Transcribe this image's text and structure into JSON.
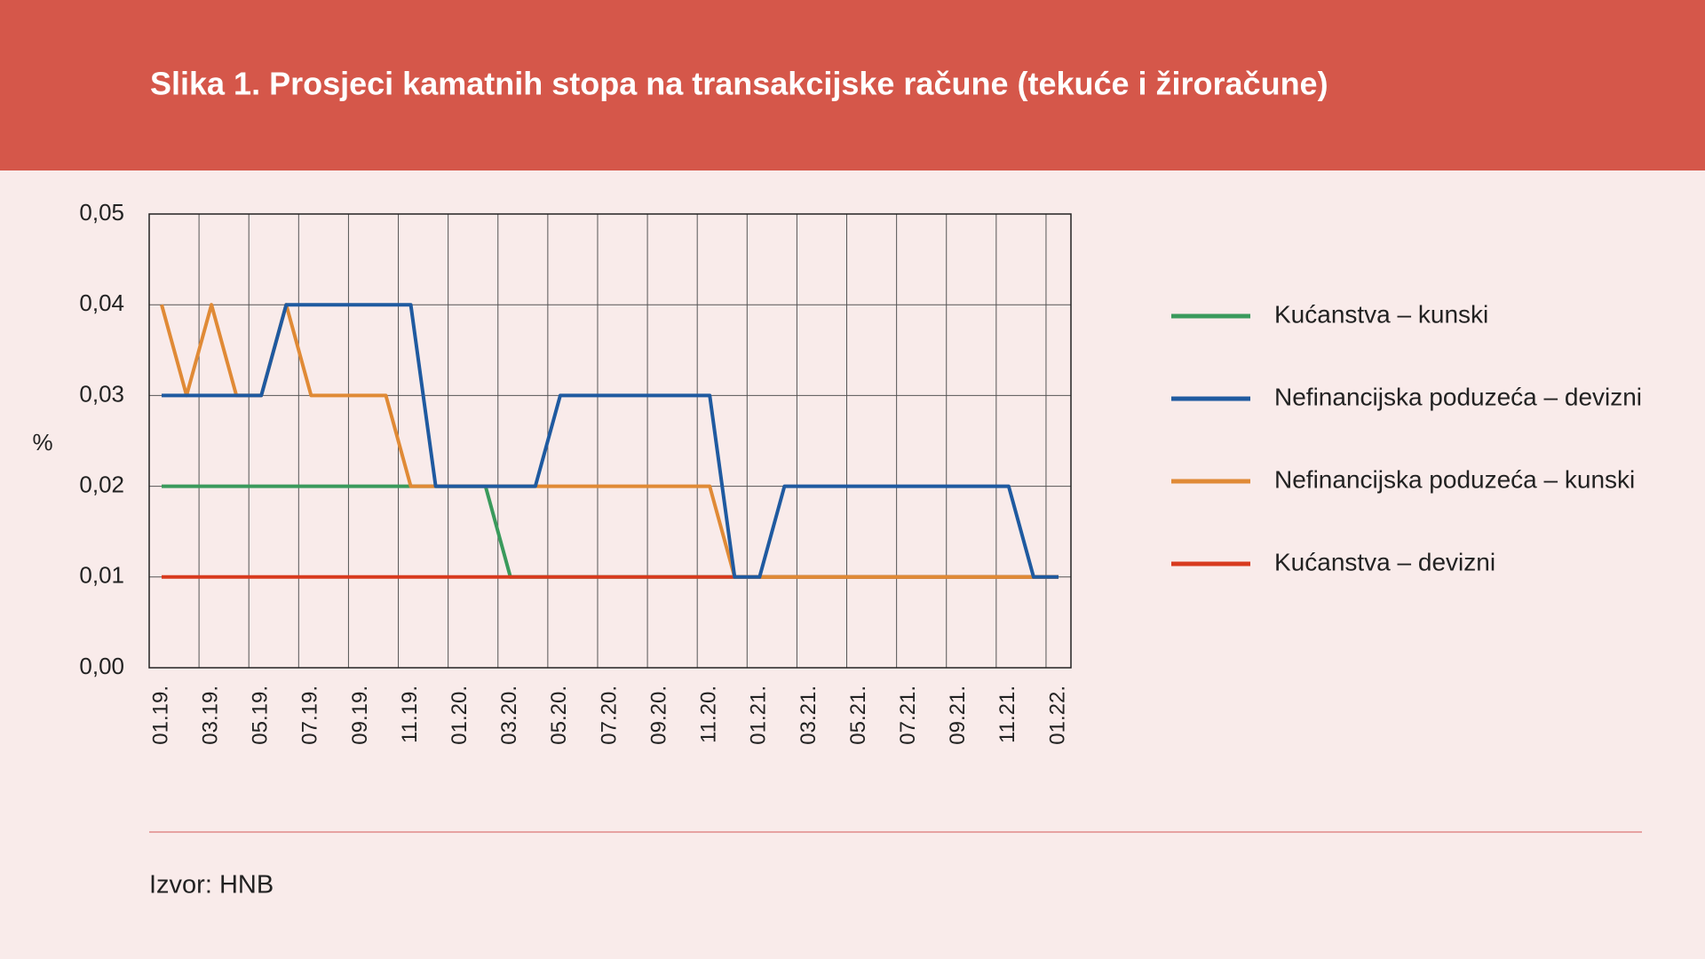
{
  "chart_data": {
    "type": "line",
    "title": "Slika 1. Prosjeci kamatnih stopa na transakcijske račune (tekuće i žiroračune)",
    "y_label": "%",
    "source": "Izvor: HNB",
    "categories": [
      "01.19.",
      null,
      "03.19.",
      null,
      "05.19.",
      null,
      "07.19.",
      null,
      "09.19.",
      null,
      "11.19.",
      null,
      "01.20.",
      null,
      "03.20.",
      null,
      "05.20.",
      null,
      "07.20.",
      null,
      "09.20.",
      null,
      "11.20.",
      null,
      "01.21.",
      null,
      "03.21.",
      null,
      "05.21.",
      null,
      "07.21.",
      null,
      "09.21.",
      null,
      "11.21.",
      null,
      "01.22."
    ],
    "ylim": [
      0,
      0.05
    ],
    "yticks": [
      {
        "value": 0,
        "label": "0,00"
      },
      {
        "value": 0.01,
        "label": "0,01"
      },
      {
        "value": 0.02,
        "label": "0,02"
      },
      {
        "value": 0.03,
        "label": "0,03"
      },
      {
        "value": 0.04,
        "label": "0,04"
      },
      {
        "value": 0.05,
        "label": "0,05"
      }
    ],
    "grid": true,
    "legend": "right",
    "series": [
      {
        "name": "Kućanstva – kunski",
        "color": "#3a9a5c",
        "values": [
          0.02,
          0.02,
          0.02,
          0.02,
          0.02,
          0.02,
          0.02,
          0.02,
          0.02,
          0.02,
          0.02,
          0.02,
          0.02,
          0.02,
          0.01,
          0.01,
          0.01,
          0.01,
          0.01,
          0.01,
          0.01,
          0.01,
          0.01,
          0.01,
          0.01,
          0.01,
          0.01,
          0.01,
          0.01,
          0.01,
          0.01,
          0.01,
          0.01,
          0.01,
          0.01,
          0.01,
          0.01
        ]
      },
      {
        "name": "Nefinancijska poduzeća – devizni",
        "color": "#1f5aa0",
        "values": [
          0.03,
          0.03,
          0.03,
          0.03,
          0.03,
          0.04,
          0.04,
          0.04,
          0.04,
          0.04,
          0.04,
          0.02,
          0.02,
          0.02,
          0.02,
          0.02,
          0.03,
          0.03,
          0.03,
          0.03,
          0.03,
          0.03,
          0.03,
          0.01,
          0.01,
          0.02,
          0.02,
          0.02,
          0.02,
          0.02,
          0.02,
          0.02,
          0.02,
          0.02,
          0.02,
          0.01,
          0.01
        ]
      },
      {
        "name": "Nefinancijska poduzeća – kunski",
        "color": "#e08a36",
        "values": [
          0.04,
          0.03,
          0.04,
          0.03,
          0.03,
          0.04,
          0.03,
          0.03,
          0.03,
          0.03,
          0.02,
          0.02,
          0.02,
          0.02,
          0.02,
          0.02,
          0.02,
          0.02,
          0.02,
          0.02,
          0.02,
          0.02,
          0.02,
          0.01,
          0.01,
          0.01,
          0.01,
          0.01,
          0.01,
          0.01,
          0.01,
          0.01,
          0.01,
          0.01,
          0.01,
          0.01,
          0.01
        ]
      },
      {
        "name": "Kućanstva – devizni",
        "color": "#d83a1e",
        "values": [
          0.01,
          0.01,
          0.01,
          0.01,
          0.01,
          0.01,
          0.01,
          0.01,
          0.01,
          0.01,
          0.01,
          0.01,
          0.01,
          0.01,
          0.01,
          0.01,
          0.01,
          0.01,
          0.01,
          0.01,
          0.01,
          0.01,
          0.01,
          0.01,
          0.01,
          0.01,
          0.01,
          0.01,
          0.01,
          0.01,
          0.01,
          0.01,
          0.01,
          0.01,
          0.01,
          0.01,
          0.01
        ]
      }
    ]
  }
}
